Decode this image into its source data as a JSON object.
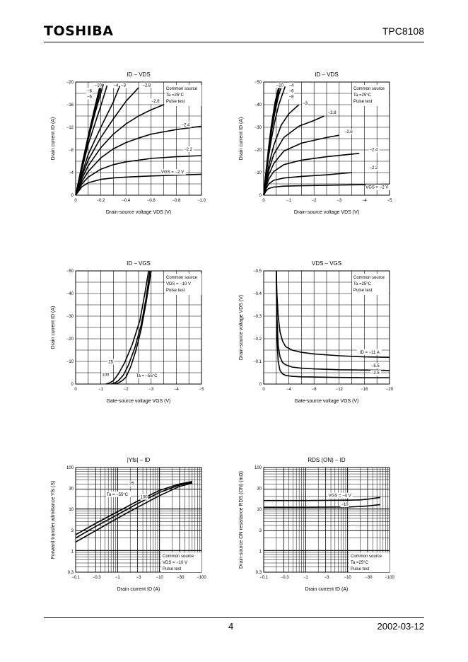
{
  "header": {
    "brand": "TOSHIBA",
    "part_number": "TPC8108"
  },
  "footer": {
    "page": "4",
    "date": "2002-03-12"
  },
  "chart_data": [
    {
      "type": "line",
      "title": "ID – VDS",
      "xlabel": "Drain-source voltage   VDS   (V)",
      "ylabel": "Drain current   ID   (A)",
      "xticks": [
        "0",
        "−0.2",
        "−0.4",
        "−0.6",
        "−0.8",
        "−1.0"
      ],
      "yticks": [
        "0",
        "−4",
        "−8",
        "−12",
        "−16",
        "−20"
      ],
      "xlim": [
        0,
        -1.0
      ],
      "ylim": [
        0,
        -20
      ],
      "grid": true,
      "box": [
        "Common source",
        "Ta =25°C",
        "Pulse test"
      ],
      "series": [
        {
          "name": "VGS = −2 V",
          "label": "VGS = −2 V",
          "x": [
            0,
            -0.05,
            -0.1,
            -0.2,
            -0.3,
            -0.4,
            -0.5,
            -0.6,
            -0.8,
            -1.0
          ],
          "y": [
            0,
            -1.5,
            -2.2,
            -2.8,
            -3.05,
            -3.2,
            -3.3,
            -3.4,
            -3.55,
            -3.7
          ]
        },
        {
          "name": "−2.2",
          "label": "−2.2",
          "x": [
            0,
            -0.05,
            -0.1,
            -0.2,
            -0.3,
            -0.4,
            -0.5,
            -0.6,
            -0.8,
            -1.0
          ],
          "y": [
            0,
            -2.0,
            -3.2,
            -4.6,
            -5.4,
            -5.9,
            -6.2,
            -6.5,
            -6.8,
            -7.0
          ]
        },
        {
          "name": "−2.4",
          "label": "−2.4",
          "x": [
            0,
            -0.05,
            -0.1,
            -0.2,
            -0.3,
            -0.4,
            -0.5,
            -0.6,
            -0.8,
            -1.0
          ],
          "y": [
            0,
            -2.4,
            -4.2,
            -6.6,
            -8.2,
            -9.3,
            -10.1,
            -10.8,
            -11.6,
            -12.2
          ]
        },
        {
          "name": "−2.6",
          "label": "−2.6",
          "x": [
            0,
            -0.05,
            -0.1,
            -0.2,
            -0.3,
            -0.4,
            -0.5,
            -0.6,
            -0.7
          ],
          "y": [
            0,
            -2.9,
            -5.2,
            -8.4,
            -10.8,
            -12.6,
            -14.0,
            -15.1,
            -16.0
          ]
        },
        {
          "name": "−2.8",
          "label": "−2.8",
          "x": [
            0,
            -0.05,
            -0.1,
            -0.2,
            -0.3,
            -0.4,
            -0.5
          ],
          "y": [
            0,
            -3.4,
            -6.2,
            -10.2,
            -13.5,
            -16.6,
            -19.0
          ]
        },
        {
          "name": "−3",
          "label": "−3",
          "x": [
            0,
            -0.05,
            -0.1,
            -0.2,
            -0.3,
            -0.35
          ],
          "y": [
            0,
            -3.8,
            -7.2,
            -12.0,
            -16.5,
            -19.3
          ]
        },
        {
          "name": "−4",
          "label": "−4",
          "x": [
            0,
            -0.05,
            -0.1,
            -0.2,
            -0.25
          ],
          "y": [
            0,
            -4.6,
            -9.0,
            -15.8,
            -19.4
          ]
        },
        {
          "name": "−6",
          "label": "−6",
          "x": [
            0,
            -0.05,
            -0.1,
            -0.15,
            -0.22
          ],
          "y": [
            0,
            -5.0,
            -9.8,
            -14.2,
            -19.6
          ]
        },
        {
          "name": "−8",
          "label": "−8",
          "x": [
            0,
            -0.05,
            -0.1,
            -0.15,
            -0.21
          ],
          "y": [
            0,
            -5.2,
            -10.2,
            -14.8,
            -19.8
          ]
        },
        {
          "name": "−10",
          "label": "−10",
          "x": [
            0,
            -0.05,
            -0.1,
            -0.15,
            -0.2
          ],
          "y": [
            0,
            -5.4,
            -10.5,
            -15.3,
            -19.9
          ]
        }
      ]
    },
    {
      "type": "line",
      "title": "ID – VDS",
      "xlabel": "Drain-source voltage   VDS   (V)",
      "ylabel": "Drain current   ID   (A)",
      "xticks": [
        "0",
        "−1",
        "−2",
        "−3",
        "−4",
        "−5"
      ],
      "yticks": [
        "0",
        "−10",
        "−20",
        "−30",
        "−40",
        "−50"
      ],
      "xlim": [
        0,
        -5
      ],
      "ylim": [
        0,
        -50
      ],
      "grid": true,
      "box": [
        "Common source",
        "Ta =25°C",
        "Pulse test"
      ],
      "series": [
        {
          "name": "VGS = −2 V",
          "label": "VGS = −2 V",
          "x": [
            0,
            -0.1,
            -0.2,
            -0.4,
            -0.8,
            -1.5,
            -2.5,
            -3.5,
            -5.0
          ],
          "y": [
            0,
            -2.0,
            -3.0,
            -3.6,
            -4.0,
            -4.2,
            -4.4,
            -4.6,
            -4.8
          ]
        },
        {
          "name": "−2.2",
          "label": "−2.2",
          "x": [
            0,
            -0.1,
            -0.2,
            -0.4,
            -0.8,
            -1.5,
            -2.5,
            -3.5
          ],
          "y": [
            0,
            -3.0,
            -5.0,
            -6.6,
            -7.6,
            -8.3,
            -9.0,
            -10.0
          ]
        },
        {
          "name": "−2.4",
          "label": "−2.4",
          "x": [
            0,
            -0.1,
            -0.2,
            -0.4,
            -0.8,
            -1.5,
            -2.5,
            -3.8
          ],
          "y": [
            0,
            -4.0,
            -7.0,
            -10.5,
            -13.5,
            -15.5,
            -17.0,
            -18.5
          ]
        },
        {
          "name": "−2.6",
          "label": "−2.6",
          "x": [
            0,
            -0.1,
            -0.2,
            -0.4,
            -0.8,
            -1.5,
            -2.5,
            -3.0
          ],
          "y": [
            0,
            -5.0,
            -9.0,
            -14.0,
            -19.5,
            -23.0,
            -25.5,
            -26.5
          ]
        },
        {
          "name": "−2.8",
          "label": "−2.8",
          "x": [
            0,
            -0.1,
            -0.2,
            -0.4,
            -0.8,
            -1.4,
            -2.0,
            -2.4
          ],
          "y": [
            0,
            -6.0,
            -11.0,
            -18.0,
            -25.5,
            -30.5,
            -33.0,
            -35.0
          ]
        },
        {
          "name": "−3",
          "label": "−3",
          "x": [
            0,
            -0.1,
            -0.2,
            -0.4,
            -0.7,
            -1.0,
            -1.4
          ],
          "y": [
            0,
            -7.0,
            -13.0,
            -22.0,
            -31.0,
            -36.0,
            -40.0
          ]
        },
        {
          "name": "−4",
          "label": "−4",
          "x": [
            0,
            -0.1,
            -0.2,
            -0.3,
            -0.45,
            -0.6,
            -0.85
          ],
          "y": [
            0,
            -9.5,
            -17.5,
            -24.5,
            -33.0,
            -40.0,
            -48.0
          ]
        },
        {
          "name": "−6",
          "label": "−6",
          "x": [
            0,
            -0.1,
            -0.2,
            -0.3,
            -0.45,
            -0.6,
            -0.75
          ],
          "y": [
            0,
            -10.5,
            -19.5,
            -27.5,
            -37.0,
            -44.5,
            -49.5
          ]
        },
        {
          "name": "−8",
          "label": "−8",
          "x": [
            0,
            -0.1,
            -0.2,
            -0.3,
            -0.45,
            -0.6,
            -0.7
          ],
          "y": [
            0,
            -11.0,
            -20.5,
            -29.0,
            -39.0,
            -46.5,
            -50.0
          ]
        },
        {
          "name": "−10",
          "label": "−10",
          "x": [
            0,
            -0.1,
            -0.2,
            -0.3,
            -0.45,
            -0.6,
            -0.66
          ],
          "y": [
            0,
            -11.5,
            -21.5,
            -30.5,
            -41.0,
            -48.0,
            -50.0
          ]
        }
      ]
    },
    {
      "type": "line",
      "title": "ID – VGS",
      "xlabel": "Gate-source voltage   VGS   (V)",
      "ylabel": "Drain current   ID   (A)",
      "xticks": [
        "0",
        "−1",
        "−2",
        "−3",
        "−4",
        "−5"
      ],
      "yticks": [
        "0",
        "−10",
        "−20",
        "−30",
        "−40",
        "−50"
      ],
      "xlim": [
        0,
        -5
      ],
      "ylim": [
        0,
        -50
      ],
      "grid": true,
      "box": [
        "Common source",
        "VDS = −10 V",
        "Pulse test"
      ],
      "series": [
        {
          "name": "Ta = −55°C",
          "label": "Ta = −55°C",
          "x": [
            -1.55,
            -1.7,
            -1.85,
            -2.0,
            -2.2,
            -2.4,
            -2.6,
            -2.8,
            -3.0
          ],
          "y": [
            0,
            -0.5,
            -1.5,
            -3.0,
            -8.0,
            -15.0,
            -24.0,
            -36.0,
            -50.0
          ]
        },
        {
          "name": "25",
          "label": "25",
          "x": [
            -1.4,
            -1.55,
            -1.7,
            -1.9,
            -2.1,
            -2.35,
            -2.6,
            -2.8,
            -2.95
          ],
          "y": [
            0,
            -0.5,
            -1.5,
            -4.0,
            -8.5,
            -16.0,
            -26.0,
            -38.0,
            -50.0
          ]
        },
        {
          "name": "100",
          "label": "100",
          "x": [
            -1.2,
            -1.35,
            -1.5,
            -1.7,
            -1.95,
            -2.25,
            -2.55,
            -2.75,
            -2.9
          ],
          "y": [
            0,
            -0.5,
            -1.5,
            -4.5,
            -9.5,
            -17.5,
            -28.0,
            -40.0,
            -50.0
          ]
        }
      ]
    },
    {
      "type": "line",
      "title": "VDS – VGS",
      "xlabel": "Gate-source voltage   VGS   (V)",
      "ylabel": "Drain-source voltage   VDS   (V)",
      "xticks": [
        "0",
        "−4",
        "−8",
        "−12",
        "−16",
        "−20"
      ],
      "yticks": [
        "0",
        "−0.1",
        "−0.2",
        "−0.3",
        "−0.4",
        "−0.5"
      ],
      "xlim": [
        0,
        -20
      ],
      "ylim": [
        0,
        -0.5
      ],
      "grid": true,
      "box": [
        "Common source",
        "Ta =25°C",
        "Pulse test"
      ],
      "series": [
        {
          "name": "ID = −11 A",
          "label": "ID = −11 A",
          "x": [
            -2.0,
            -2.1,
            -2.3,
            -2.6,
            -3.0,
            -3.5,
            -4.5,
            -6,
            -8,
            -12,
            -16,
            -20
          ],
          "y": [
            -0.5,
            -0.4,
            -0.3,
            -0.23,
            -0.19,
            -0.165,
            -0.15,
            -0.14,
            -0.133,
            -0.125,
            -0.12,
            -0.118
          ]
        },
        {
          "name": "−5.5",
          "label": "−5.5",
          "x": [
            -2.0,
            -2.1,
            -2.3,
            -2.6,
            -3.0,
            -3.5,
            -4.5,
            -6,
            -8,
            -12,
            -16,
            -20
          ],
          "y": [
            -0.5,
            -0.3,
            -0.17,
            -0.12,
            -0.095,
            -0.085,
            -0.075,
            -0.07,
            -0.067,
            -0.063,
            -0.062,
            -0.06
          ]
        },
        {
          "name": "−2.5",
          "label": "−2.5",
          "x": [
            -2.0,
            -2.1,
            -2.3,
            -2.6,
            -3.0,
            -3.5,
            -4.5,
            -6,
            -8,
            -12,
            -16,
            -20
          ],
          "y": [
            -0.5,
            -0.2,
            -0.1,
            -0.06,
            -0.045,
            -0.038,
            -0.034,
            -0.032,
            -0.031,
            -0.029,
            -0.028,
            -0.028
          ]
        }
      ]
    },
    {
      "type": "line",
      "title": "|Yfs| – ID",
      "xlabel": "Drain current   ID   (A)",
      "ylabel": "Forward transfer admittance   Yfs   (S)",
      "xscale": "log",
      "yscale": "log",
      "xticks": [
        "−0.1",
        "−0.3",
        "−1",
        "−3",
        "−10",
        "−30",
        "−100"
      ],
      "yticks": [
        "0.3",
        "1",
        "3",
        "10",
        "30",
        "100"
      ],
      "xlim": [
        -0.1,
        -100
      ],
      "ylim": [
        0.3,
        100
      ],
      "grid": true,
      "box": [
        "Common source",
        "VDS = −10 V",
        "Pulse test"
      ],
      "series": [
        {
          "name": "Ta = −55°C",
          "label": "Ta = −55°C",
          "x": [
            -0.1,
            -0.3,
            -1,
            -3,
            -10,
            -30,
            -60
          ],
          "y": [
            1.6,
            3.0,
            6.0,
            11.0,
            21.0,
            35.0,
            42.0
          ]
        },
        {
          "name": "25",
          "label": "25",
          "x": [
            -0.1,
            -0.3,
            -1,
            -3,
            -10,
            -30,
            -60
          ],
          "y": [
            2.0,
            3.8,
            7.3,
            13.5,
            25.0,
            38.0,
            44.0
          ]
        },
        {
          "name": "100",
          "label": "100",
          "x": [
            -0.1,
            -0.3,
            -1,
            -3,
            -10,
            -30,
            -60
          ],
          "y": [
            2.4,
            4.5,
            8.6,
            15.5,
            28.0,
            40.0,
            46.0
          ]
        }
      ]
    },
    {
      "type": "line",
      "title": "RDS (ON) – ID",
      "xlabel": "Drain current   ID   (A)",
      "ylabel": "Drain-source ON resistance   RDS (ON)   (mΩ)",
      "xscale": "log",
      "yscale": "log",
      "xticks": [
        "−0.1",
        "−0.3",
        "−1",
        "−3",
        "−10",
        "−30",
        "−100"
      ],
      "yticks": [
        "0.3",
        "1",
        "3",
        "10",
        "30",
        "100"
      ],
      "xlim": [
        -0.1,
        -100
      ],
      "ylim": [
        0.3,
        100
      ],
      "grid": true,
      "box": [
        "Common source",
        "Ta =25°C",
        "Pulse test"
      ],
      "series": [
        {
          "name": "VGS = −4 V",
          "label": "VGS = −4 V",
          "x": [
            -0.1,
            -1,
            -10,
            -20,
            -30,
            -60
          ],
          "y": [
            16,
            16,
            16.3,
            16.6,
            17.2,
            19
          ]
        },
        {
          "name": "−10",
          "label": "−10",
          "x": [
            -0.1,
            -1,
            -10,
            -20,
            -30,
            -60
          ],
          "y": [
            11,
            11,
            11.2,
            11.5,
            11.8,
            12.8
          ]
        }
      ]
    }
  ]
}
